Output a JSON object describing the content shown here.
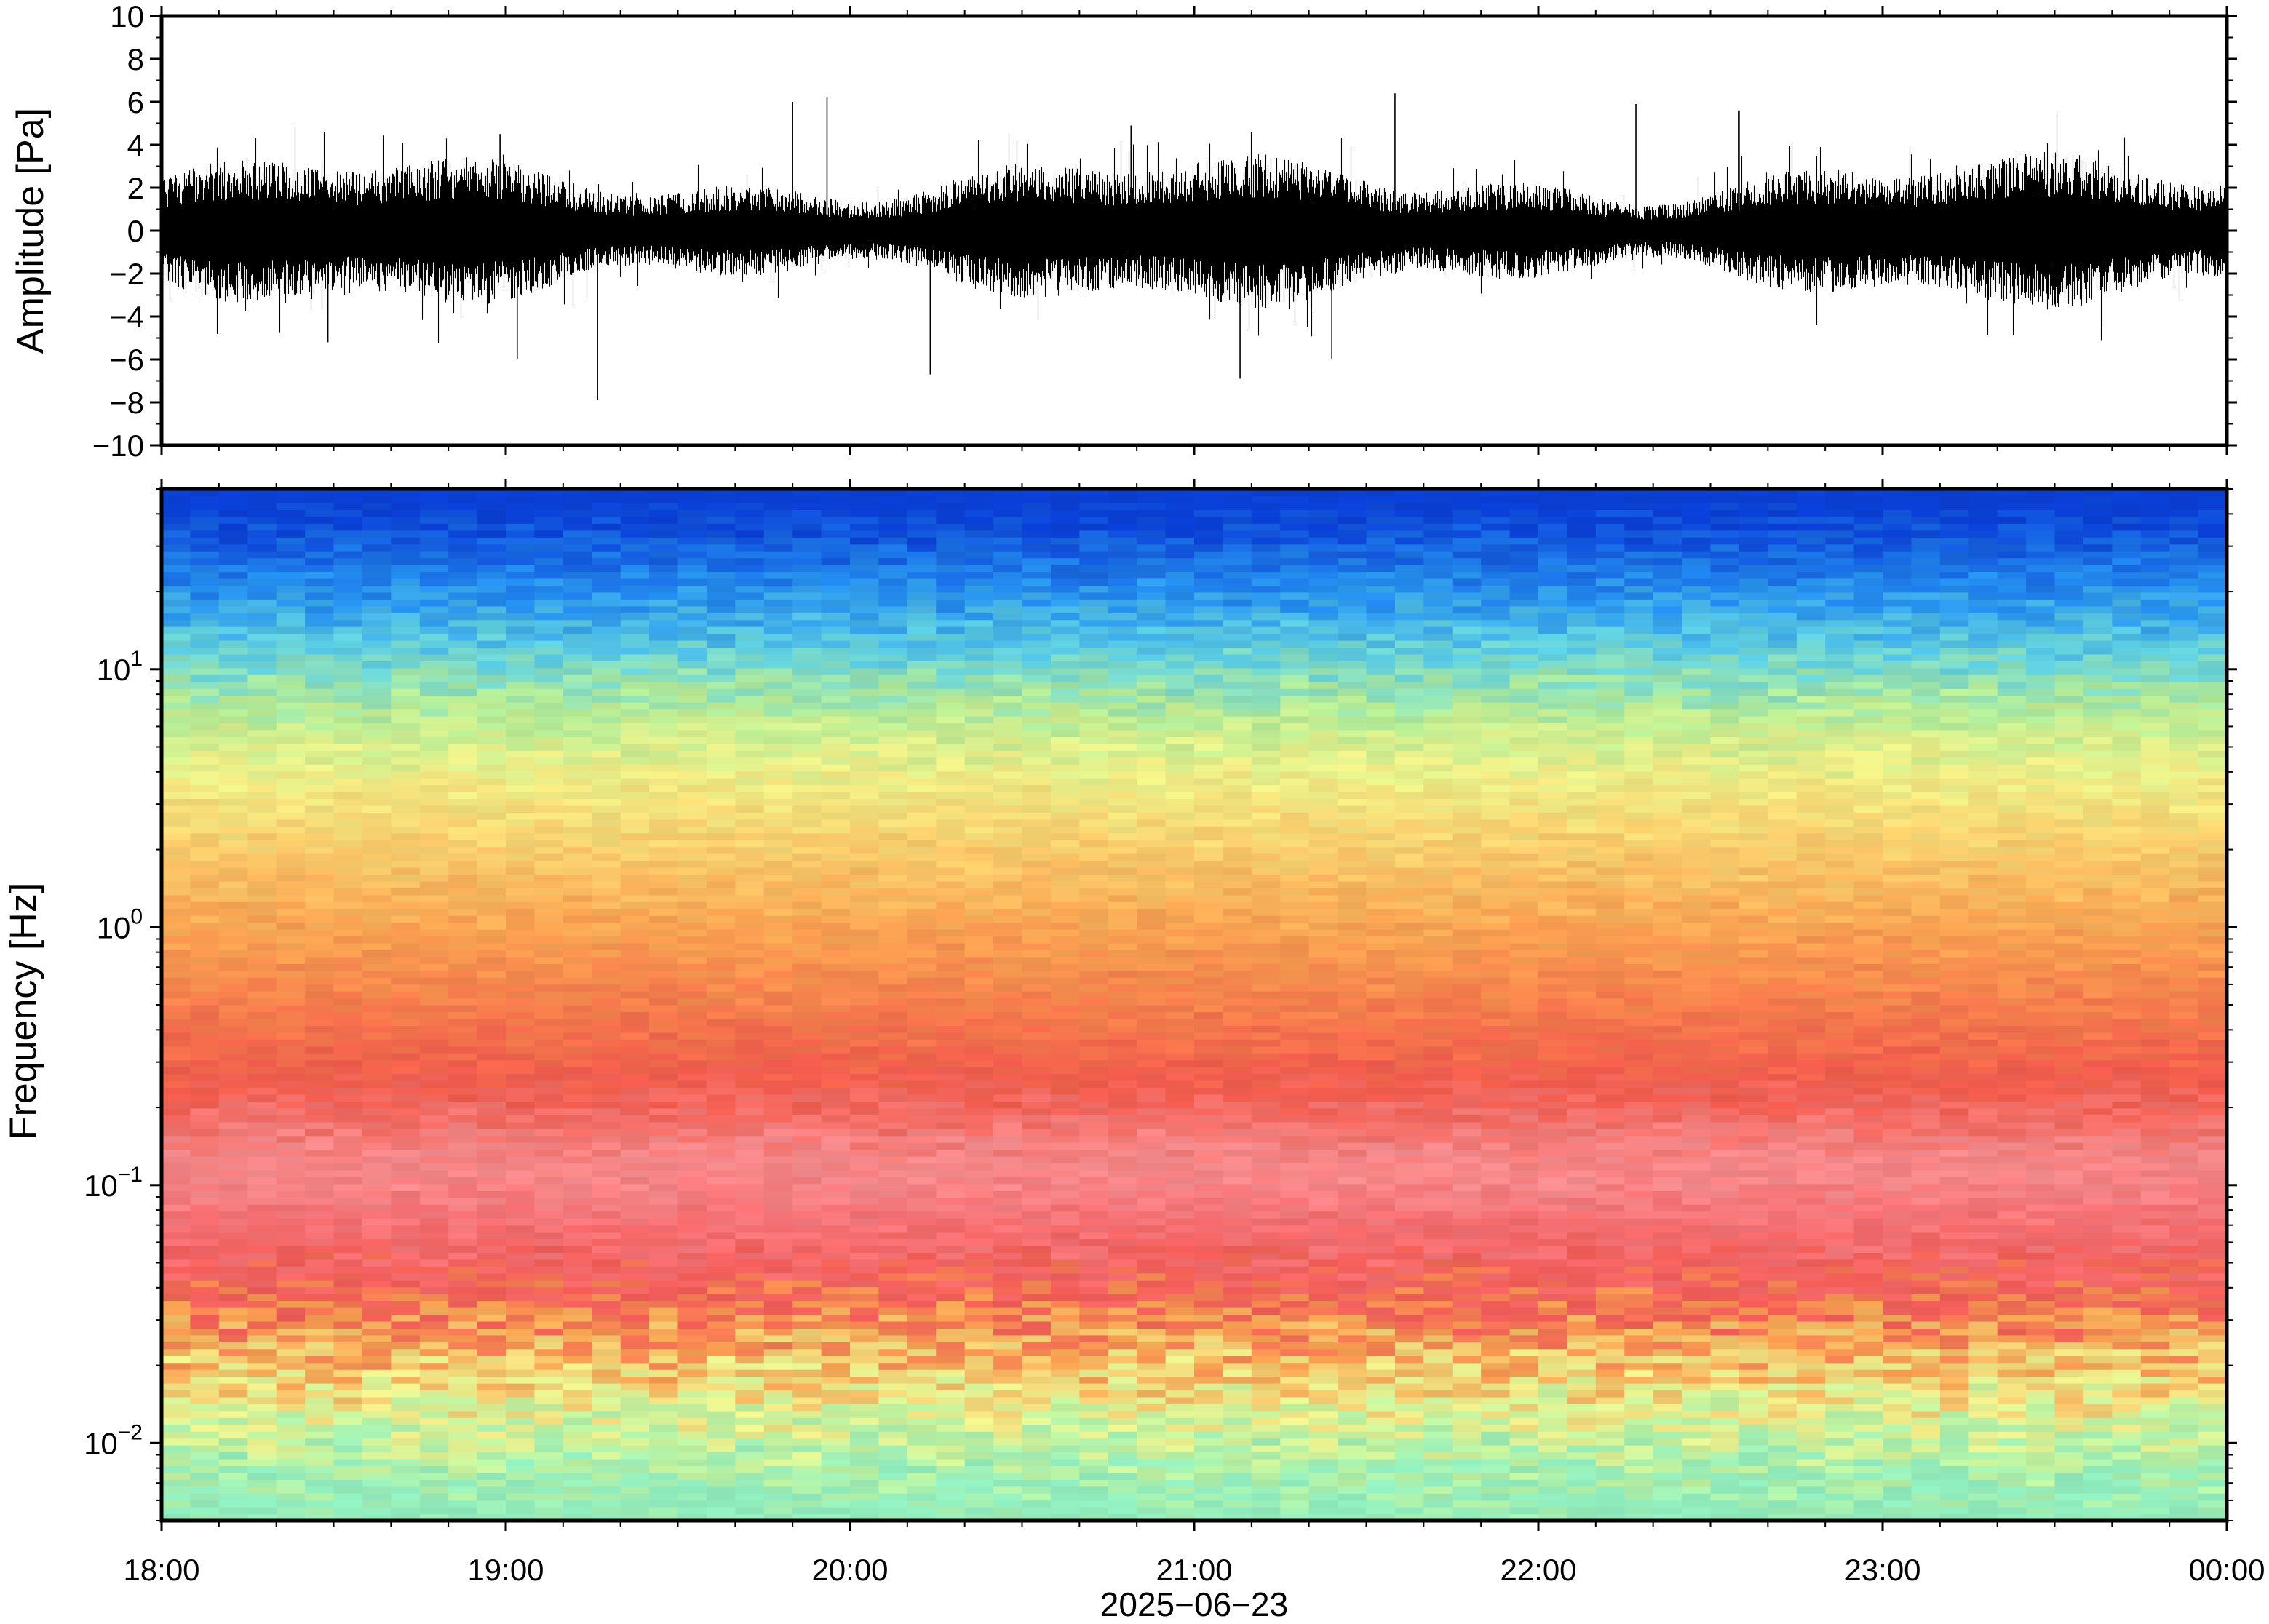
{
  "chart_data": [
    {
      "type": "line",
      "panel": "waveform",
      "ylabel": "Amplitude [Pa]",
      "ylim": [
        -10,
        10
      ],
      "yticks": [
        -10,
        -8,
        -6,
        -4,
        -2,
        0,
        2,
        4,
        6,
        8,
        10
      ],
      "ytick_labels": [
        "−10",
        "−8",
        "−6",
        "−4",
        "−2",
        "0",
        "2",
        "4",
        "6",
        "8",
        "10"
      ],
      "x_range": [
        "2025-06-23 18:00",
        "2025-06-24 00:00"
      ],
      "series": [
        {
          "color": "#000000",
          "envelope_typical": [
            -2.5,
            2.5
          ],
          "peaks": [
            {
              "time": "18:29",
              "value": -5.2
            },
            {
              "time": "18:59",
              "value": 4.5
            },
            {
              "time": "19:02",
              "value": -6.0
            },
            {
              "time": "19:16",
              "value": -7.9
            },
            {
              "time": "19:50",
              "value": 6.0
            },
            {
              "time": "19:56",
              "value": 6.2
            },
            {
              "time": "20:14",
              "value": -6.7
            },
            {
              "time": "20:49",
              "value": 4.9
            },
            {
              "time": "21:08",
              "value": -6.9
            },
            {
              "time": "21:24",
              "value": -6.0
            },
            {
              "time": "21:35",
              "value": 6.4
            },
            {
              "time": "22:17",
              "value": 5.9
            },
            {
              "time": "22:35",
              "value": 5.6
            }
          ]
        }
      ]
    },
    {
      "type": "heatmap",
      "panel": "spectrogram",
      "ylabel": "Frequency [Hz]",
      "yscale": "log",
      "ylim": [
        0.005,
        50
      ],
      "yticks": [
        0.01,
        0.1,
        1,
        10
      ],
      "ytick_labels": [
        {
          "base": "10",
          "exp": "−2"
        },
        {
          "base": "10",
          "exp": "−1"
        },
        {
          "base": "10",
          "exp": "0"
        },
        {
          "base": "10",
          "exp": "1"
        }
      ],
      "colormap": [
        "#0022cc",
        "#1a7ff0",
        "#5ad8f0",
        "#b8f0a8",
        "#eef59a",
        "#f8d070",
        "#f8a050",
        "#f06050",
        "#f59a9a"
      ],
      "typical_band_colors": [
        {
          "freq_hz": 40,
          "color": "#0a3fd4"
        },
        {
          "freq_hz": 20,
          "color": "#2590ee"
        },
        {
          "freq_hz": 12,
          "color": "#5fd0e0"
        },
        {
          "freq_hz": 7,
          "color": "#b5ec95"
        },
        {
          "freq_hz": 4,
          "color": "#eef088"
        },
        {
          "freq_hz": 2,
          "color": "#f8cd6c"
        },
        {
          "freq_hz": 1,
          "color": "#f8a452"
        },
        {
          "freq_hz": 0.5,
          "color": "#f47e4c"
        },
        {
          "freq_hz": 0.25,
          "color": "#f05a4c"
        },
        {
          "freq_hz": 0.12,
          "color": "#f58c8e"
        },
        {
          "freq_hz": 0.07,
          "color": "#f57073"
        },
        {
          "freq_hz": 0.04,
          "color": "#ef5a55"
        },
        {
          "freq_hz": 0.025,
          "color": "#f7a050"
        },
        {
          "freq_hz": 0.015,
          "color": "#eef08c"
        },
        {
          "freq_hz": 0.01,
          "color": "#bdf2a0"
        },
        {
          "freq_hz": 0.006,
          "color": "#90ecbd"
        }
      ]
    }
  ],
  "xaxis": {
    "tick_labels": [
      "18:00",
      "19:00",
      "20:00",
      "21:00",
      "22:00",
      "23:00",
      "00:00"
    ],
    "title": "2025−06−23"
  }
}
